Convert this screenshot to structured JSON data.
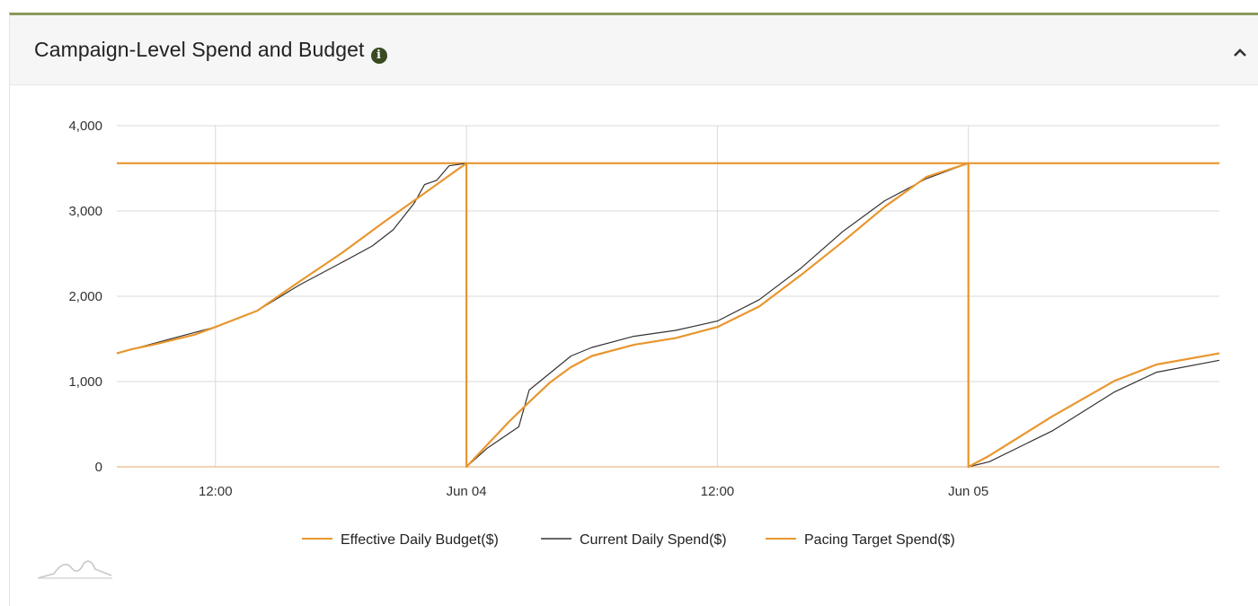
{
  "panel": {
    "title": "Campaign-Level Spend and Budget",
    "info_icon": "info-icon",
    "collapse_icon": "chevron-up-icon"
  },
  "chart_data": {
    "type": "line",
    "title": "Campaign-Level Spend and Budget",
    "xlabel": "",
    "ylabel": "",
    "x_ticks": [
      "12:00",
      "Jun 04",
      "12:00",
      "Jun 05"
    ],
    "y_ticks": [
      "4,000",
      "3,000",
      "2,000",
      "1,000",
      "0"
    ],
    "x_range": [
      "Jun 03 07:17",
      "Jun 05 12:00"
    ],
    "ylim": [
      0,
      4000
    ],
    "grid": true,
    "legend_position": "bottom",
    "series": [
      {
        "name": "Effective Daily Budget($)",
        "color": "#e8962e",
        "points": [
          [
            "Jun 03 07:17",
            3560
          ],
          [
            "Jun 05 12:00",
            3560
          ]
        ]
      },
      {
        "name": "Current Daily Spend($)",
        "color": "#333333",
        "points": [
          [
            "Jun 03 07:17",
            1330
          ],
          [
            "Jun 03 10:00",
            1510
          ],
          [
            "Jun 03 12:00",
            1640
          ],
          [
            "Jun 03 14:00",
            1830
          ],
          [
            "Jun 03 16:00",
            2130
          ],
          [
            "Jun 03 18:00",
            2390
          ],
          [
            "Jun 03 19:30",
            2590
          ],
          [
            "Jun 03 20:30",
            2780
          ],
          [
            "Jun 03 21:30",
            3090
          ],
          [
            "Jun 03 22:00",
            3310
          ],
          [
            "Jun 03 22:35",
            3360
          ],
          [
            "Jun 03 23:10",
            3530
          ],
          [
            "Jun 04 00:00",
            3560
          ],
          [
            "Jun 04 00:00",
            0
          ],
          [
            "Jun 04 01:00",
            220
          ],
          [
            "Jun 04 02:30",
            470
          ],
          [
            "Jun 04 03:00",
            900
          ],
          [
            "Jun 04 04:00",
            1100
          ],
          [
            "Jun 04 05:00",
            1300
          ],
          [
            "Jun 04 06:00",
            1400
          ],
          [
            "Jun 04 08:00",
            1530
          ],
          [
            "Jun 04 10:00",
            1600
          ],
          [
            "Jun 04 12:00",
            1710
          ],
          [
            "Jun 04 14:00",
            1960
          ],
          [
            "Jun 04 16:00",
            2330
          ],
          [
            "Jun 04 18:00",
            2760
          ],
          [
            "Jun 04 20:00",
            3120
          ],
          [
            "Jun 04 22:00",
            3380
          ],
          [
            "Jun 05 00:00",
            3560
          ],
          [
            "Jun 05 00:00",
            0
          ],
          [
            "Jun 05 01:00",
            60
          ],
          [
            "Jun 05 04:00",
            420
          ],
          [
            "Jun 05 07:00",
            880
          ],
          [
            "Jun 05 09:00",
            1110
          ],
          [
            "Jun 05 12:00",
            1250
          ]
        ]
      },
      {
        "name": "Pacing Target Spend($)",
        "color": "#e8962e",
        "points": [
          [
            "Jun 03 07:17",
            1330
          ],
          [
            "Jun 03 08:00",
            1380
          ],
          [
            "Jun 03 09:00",
            1430
          ],
          [
            "Jun 03 10:00",
            1490
          ],
          [
            "Jun 03 11:00",
            1550
          ],
          [
            "Jun 03 12:00",
            1640
          ],
          [
            "Jun 03 14:00",
            1830
          ],
          [
            "Jun 03 16:00",
            2170
          ],
          [
            "Jun 03 18:00",
            2500
          ],
          [
            "Jun 03 20:00",
            2860
          ],
          [
            "Jun 03 22:00",
            3210
          ],
          [
            "Jun 04 00:00",
            3560
          ],
          [
            "Jun 04 00:00",
            0
          ],
          [
            "Jun 04 02:00",
            520
          ],
          [
            "Jun 04 03:00",
            760
          ],
          [
            "Jun 04 04:00",
            990
          ],
          [
            "Jun 04 05:00",
            1170
          ],
          [
            "Jun 04 06:00",
            1300
          ],
          [
            "Jun 04 08:00",
            1430
          ],
          [
            "Jun 04 10:00",
            1510
          ],
          [
            "Jun 04 12:00",
            1640
          ],
          [
            "Jun 04 14:00",
            1880
          ],
          [
            "Jun 04 16:00",
            2250
          ],
          [
            "Jun 04 18:00",
            2640
          ],
          [
            "Jun 04 20:00",
            3050
          ],
          [
            "Jun 04 22:00",
            3400
          ],
          [
            "Jun 05 00:00",
            3560
          ],
          [
            "Jun 05 00:00",
            0
          ],
          [
            "Jun 05 01:00",
            130
          ],
          [
            "Jun 05 04:00",
            590
          ],
          [
            "Jun 05 07:00",
            1010
          ],
          [
            "Jun 05 09:00",
            1200
          ],
          [
            "Jun 05 12:00",
            1330
          ]
        ]
      }
    ]
  }
}
